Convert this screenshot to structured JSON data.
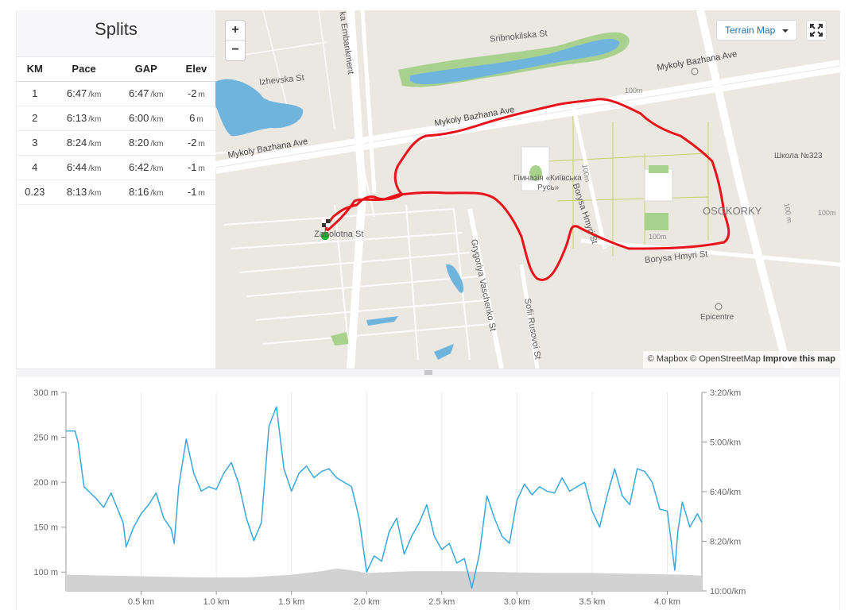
{
  "splits": {
    "title": "Splits",
    "columns": [
      "KM",
      "Pace",
      "GAP",
      "Elev"
    ],
    "rows": [
      {
        "km": "1",
        "pace": "6:47",
        "pace_unit": "/km",
        "gap": "6:47",
        "gap_unit": "/km",
        "elev": "-2",
        "elev_unit": "m"
      },
      {
        "km": "2",
        "pace": "6:13",
        "pace_unit": "/km",
        "gap": "6:00",
        "gap_unit": "/km",
        "elev": "6",
        "elev_unit": "m"
      },
      {
        "km": "3",
        "pace": "8:24",
        "pace_unit": "/km",
        "gap": "8:20",
        "gap_unit": "/km",
        "elev": "-2",
        "elev_unit": "m"
      },
      {
        "km": "4",
        "pace": "6:44",
        "pace_unit": "/km",
        "gap": "6:42",
        "gap_unit": "/km",
        "elev": "-1",
        "elev_unit": "m"
      },
      {
        "km": "0.23",
        "pace": "8:13",
        "pace_unit": "/km",
        "gap": "8:16",
        "gap_unit": "/km",
        "elev": "-1",
        "elev_unit": "m"
      }
    ]
  },
  "map": {
    "zoom_in": "+",
    "zoom_out": "−",
    "terrain_label": "Terrain Map",
    "attribution_mapbox": "© Mapbox",
    "attribution_osm": "© OpenStreetMap",
    "attribution_improve": "Improve this map",
    "route_color": "#e8131a",
    "labels": {
      "sribnokilska": "Sribnokilska St",
      "izhevska": "Izhevska St",
      "embankment": "ka Embankment",
      "bazhana_top": "Mykoly Bazhana Ave",
      "bazhana_mid": "Mykoly Bazhana Ave",
      "bazhana_left": "Mykoly Bazhana Ave",
      "gymnasium_1": "Гімназія «Київська",
      "gymnasium_2": "Русь»",
      "borysa_hmyri_v": "Borysa Hmyri St",
      "borysa_hmyri_h": "Borysa Hmyri St",
      "osokorky": "OSOKORKY",
      "school": "Школа №323",
      "zabolotna": "Zabolotna St",
      "vaschenko": "Grygoriya Vaschenko St",
      "rusovoi": "Sofii Rusovoi St",
      "epicentre": "Epicentre",
      "m100a": "100m",
      "m100b": "100m",
      "m100c": "100m",
      "m100d": "100m",
      "m100e": "100 m"
    }
  },
  "chart_data": {
    "type": "area",
    "x_unit": "km",
    "x_ticks": [
      "0.5 km",
      "1.0 km",
      "1.5 km",
      "2.0 km",
      "2.5 km",
      "3.0 km",
      "3.5 km",
      "4.0 km"
    ],
    "x_tick_values": [
      0.5,
      1.0,
      1.5,
      2.0,
      2.5,
      3.0,
      3.5,
      4.0
    ],
    "xlim": [
      0,
      4.23
    ],
    "left_axis": {
      "ticks": [
        "300 m",
        "250 m",
        "200 m",
        "150 m",
        "100 m"
      ],
      "tick_values": [
        300,
        250,
        200,
        150,
        100
      ],
      "ylim": [
        79,
        300
      ]
    },
    "right_axis": {
      "ticks": [
        "3:20/km",
        "5:00/km",
        "6:40/km",
        "8:20/km",
        "10:00/km"
      ]
    },
    "grid": true,
    "series": [
      {
        "kind": "elevation-area",
        "color": "#d2d2d2",
        "x": [
          0,
          0.3,
          0.6,
          0.9,
          1.2,
          1.5,
          1.7,
          1.8,
          1.9,
          2.0,
          2.3,
          2.6,
          2.9,
          3.2,
          3.5,
          3.8,
          4.1,
          4.23
        ],
        "y": [
          97,
          96,
          95,
          94,
          94,
          97,
          101,
          104,
          102,
          99,
          101,
          101,
          100,
          99,
          99,
          98,
          97,
          96
        ]
      },
      {
        "kind": "pace-line",
        "color": "#39a8da",
        "x": [
          0,
          0.06,
          0.08,
          0.12,
          0.2,
          0.25,
          0.3,
          0.38,
          0.4,
          0.45,
          0.5,
          0.55,
          0.6,
          0.65,
          0.7,
          0.72,
          0.75,
          0.8,
          0.85,
          0.9,
          0.95,
          1.0,
          1.05,
          1.1,
          1.15,
          1.2,
          1.25,
          1.3,
          1.35,
          1.4,
          1.45,
          1.5,
          1.55,
          1.6,
          1.65,
          1.7,
          1.75,
          1.8,
          1.85,
          1.9,
          1.95,
          2.0,
          2.05,
          2.1,
          2.15,
          2.2,
          2.25,
          2.3,
          2.35,
          2.4,
          2.45,
          2.5,
          2.55,
          2.6,
          2.65,
          2.7,
          2.75,
          2.8,
          2.85,
          2.9,
          2.95,
          3.0,
          3.05,
          3.1,
          3.15,
          3.2,
          3.25,
          3.3,
          3.35,
          3.4,
          3.45,
          3.5,
          3.55,
          3.6,
          3.65,
          3.7,
          3.75,
          3.8,
          3.85,
          3.9,
          3.95,
          4.0,
          4.05,
          4.07,
          4.1,
          4.15,
          4.2,
          4.23
        ],
        "y": [
          257,
          257,
          245,
          195,
          182,
          172,
          188,
          155,
          128,
          150,
          165,
          175,
          188,
          160,
          148,
          132,
          195,
          248,
          210,
          190,
          195,
          192,
          210,
          222,
          198,
          160,
          135,
          155,
          262,
          284,
          215,
          190,
          210,
          218,
          205,
          212,
          215,
          205,
          200,
          195,
          160,
          100,
          118,
          112,
          145,
          160,
          120,
          140,
          155,
          175,
          140,
          125,
          132,
          110,
          115,
          82,
          120,
          185,
          160,
          140,
          132,
          180,
          198,
          186,
          195,
          190,
          188,
          205,
          190,
          195,
          200,
          168,
          150,
          185,
          215,
          185,
          175,
          215,
          212,
          200,
          170,
          168,
          102,
          145,
          178,
          150,
          165,
          155
        ]
      }
    ]
  }
}
